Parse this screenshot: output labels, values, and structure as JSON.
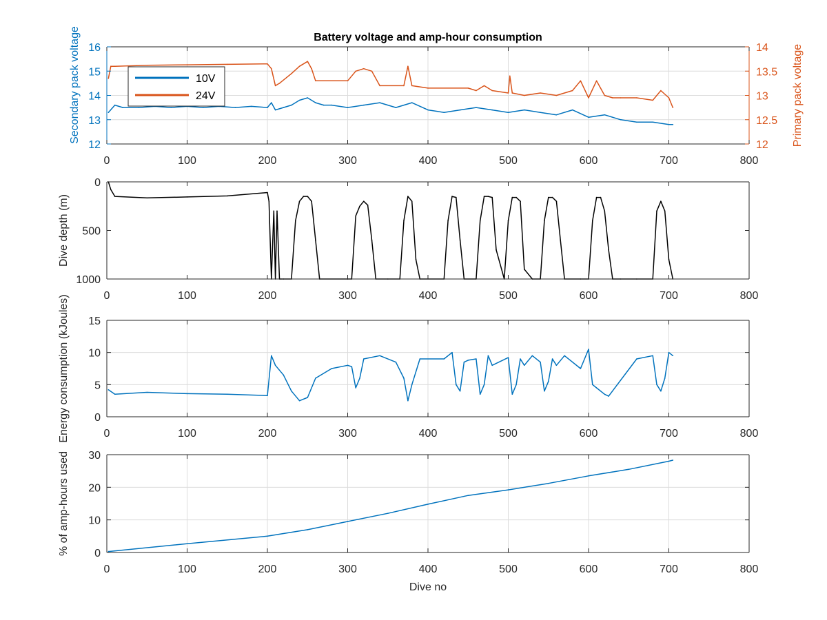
{
  "chart_data": [
    {
      "type": "line",
      "title": "Battery voltage and amp-hour consumption",
      "xlabel": "",
      "xlim": [
        0,
        800
      ],
      "xticks": [
        "0",
        "100",
        "200",
        "300",
        "400",
        "500",
        "600",
        "700",
        "800"
      ],
      "y_left": {
        "label": "Secondary pack voltage",
        "lim": [
          12,
          16
        ],
        "ticks": [
          "12",
          "13",
          "14",
          "15",
          "16"
        ],
        "color": "#0072BD"
      },
      "y_right": {
        "label": "Primary pack voltage",
        "lim": [
          12,
          14
        ],
        "ticks": [
          "12",
          "12.5",
          "13",
          "13.5",
          "14"
        ],
        "color": "#D95319"
      },
      "grid": true,
      "legend": {
        "placement": "top-left",
        "entries": [
          "10V",
          "24V"
        ]
      },
      "series": [
        {
          "name": "10V",
          "axis": "left",
          "color": "#0072BD",
          "x": [
            2,
            10,
            20,
            40,
            60,
            80,
            100,
            120,
            140,
            160,
            180,
            200,
            205,
            210,
            220,
            230,
            240,
            250,
            260,
            270,
            280,
            300,
            320,
            340,
            360,
            380,
            400,
            420,
            440,
            460,
            480,
            500,
            520,
            540,
            560,
            580,
            600,
            620,
            640,
            660,
            680,
            700,
            705
          ],
          "y": [
            13.3,
            13.6,
            13.5,
            13.5,
            13.55,
            13.5,
            13.55,
            13.5,
            13.55,
            13.5,
            13.55,
            13.5,
            13.7,
            13.4,
            13.5,
            13.6,
            13.8,
            13.9,
            13.7,
            13.6,
            13.6,
            13.5,
            13.6,
            13.7,
            13.5,
            13.7,
            13.4,
            13.3,
            13.4,
            13.5,
            13.4,
            13.3,
            13.4,
            13.3,
            13.2,
            13.4,
            13.1,
            13.2,
            13.0,
            12.9,
            12.9,
            12.8,
            12.8
          ]
        },
        {
          "name": "24V",
          "axis": "right",
          "color": "#D95319",
          "x": [
            2,
            5,
            10,
            50,
            100,
            150,
            200,
            205,
            210,
            215,
            230,
            240,
            250,
            255,
            260,
            300,
            310,
            320,
            330,
            340,
            370,
            375,
            380,
            400,
            450,
            460,
            470,
            480,
            500,
            502,
            505,
            520,
            540,
            560,
            580,
            590,
            600,
            610,
            620,
            630,
            640,
            660,
            680,
            690,
            700,
            705
          ],
          "y": [
            13.35,
            13.6,
            13.6,
            13.62,
            13.63,
            13.64,
            13.65,
            13.55,
            13.2,
            13.25,
            13.45,
            13.6,
            13.7,
            13.55,
            13.3,
            13.3,
            13.5,
            13.55,
            13.5,
            13.2,
            13.2,
            13.6,
            13.2,
            13.15,
            13.15,
            13.1,
            13.2,
            13.1,
            13.05,
            13.4,
            13.05,
            13.0,
            13.05,
            13.0,
            13.1,
            13.3,
            12.95,
            13.3,
            13.0,
            12.95,
            12.95,
            12.95,
            12.9,
            13.1,
            12.95,
            12.75
          ]
        }
      ]
    },
    {
      "type": "line",
      "title": "",
      "xlabel": "",
      "ylabel": "Dive depth (m)",
      "xlim": [
        0,
        800
      ],
      "ylim": [
        0,
        1000
      ],
      "y_reversed": true,
      "xticks": [
        "0",
        "100",
        "200",
        "300",
        "400",
        "500",
        "600",
        "700",
        "800"
      ],
      "yticks": [
        "0",
        "500",
        "1000"
      ],
      "grid": false,
      "series": [
        {
          "color": "#000000",
          "x": [
            2,
            5,
            10,
            50,
            100,
            150,
            200,
            202,
            205,
            208,
            210,
            212,
            215,
            217,
            220,
            230,
            235,
            240,
            245,
            250,
            255,
            260,
            265,
            300,
            305,
            310,
            315,
            320,
            325,
            330,
            335,
            350,
            365,
            370,
            375,
            380,
            385,
            390,
            420,
            425,
            430,
            435,
            440,
            445,
            460,
            465,
            470,
            475,
            480,
            485,
            495,
            500,
            505,
            510,
            515,
            520,
            530,
            540,
            545,
            550,
            555,
            560,
            565,
            570,
            590,
            600,
            605,
            610,
            615,
            620,
            625,
            630,
            640,
            660,
            680,
            685,
            690,
            695,
            700,
            705
          ],
          "y": [
            0,
            80,
            150,
            165,
            155,
            145,
            110,
            200,
            1000,
            300,
            1000,
            300,
            1000,
            1000,
            1000,
            1000,
            400,
            200,
            150,
            150,
            200,
            600,
            1000,
            1000,
            1000,
            350,
            250,
            200,
            240,
            600,
            1000,
            1000,
            1000,
            400,
            150,
            200,
            800,
            1000,
            1000,
            400,
            150,
            160,
            600,
            1000,
            1000,
            400,
            150,
            150,
            160,
            700,
            1000,
            400,
            160,
            160,
            200,
            900,
            1000,
            1000,
            400,
            160,
            160,
            200,
            600,
            1000,
            1000,
            1000,
            400,
            160,
            160,
            300,
            700,
            1000,
            1000,
            1000,
            1000,
            300,
            200,
            300,
            800,
            1000
          ]
        }
      ]
    },
    {
      "type": "line",
      "title": "",
      "xlabel": "",
      "ylabel": "Energy consumption (kJoules)",
      "xlim": [
        0,
        800
      ],
      "ylim": [
        0,
        15
      ],
      "xticks": [
        "0",
        "100",
        "200",
        "300",
        "400",
        "500",
        "600",
        "700",
        "800"
      ],
      "yticks": [
        "0",
        "5",
        "10",
        "15"
      ],
      "grid": true,
      "series": [
        {
          "color": "#0072BD",
          "x": [
            2,
            10,
            50,
            100,
            150,
            200,
            205,
            210,
            220,
            230,
            240,
            250,
            260,
            280,
            300,
            305,
            310,
            315,
            320,
            340,
            360,
            370,
            375,
            380,
            390,
            420,
            430,
            435,
            440,
            445,
            450,
            460,
            465,
            470,
            475,
            480,
            500,
            505,
            510,
            515,
            520,
            530,
            540,
            545,
            550,
            555,
            560,
            570,
            590,
            600,
            605,
            610,
            620,
            625,
            660,
            680,
            685,
            690,
            695,
            700,
            705
          ],
          "y": [
            4.2,
            3.5,
            3.8,
            3.6,
            3.5,
            3.3,
            9.5,
            8.0,
            6.5,
            4.0,
            2.5,
            3.0,
            6.0,
            7.5,
            8.0,
            7.8,
            4.5,
            6.0,
            9.0,
            9.5,
            8.5,
            6.0,
            2.5,
            5.0,
            9.0,
            9.0,
            10.0,
            5.0,
            4.0,
            8.5,
            8.8,
            9.0,
            3.5,
            5.0,
            9.5,
            8.0,
            9.2,
            3.5,
            5.0,
            9.0,
            8.0,
            9.5,
            8.5,
            4.0,
            5.5,
            9.0,
            8.0,
            9.5,
            7.5,
            10.5,
            5.0,
            4.5,
            3.5,
            3.2,
            9.0,
            9.5,
            5.0,
            4.0,
            6.0,
            10.0,
            9.5
          ]
        }
      ]
    },
    {
      "type": "line",
      "title": "",
      "xlabel": "Dive no",
      "ylabel": "% of amp-hours used",
      "xlim": [
        0,
        800
      ],
      "ylim": [
        0,
        30
      ],
      "xticks": [
        "0",
        "100",
        "200",
        "300",
        "400",
        "500",
        "600",
        "700",
        "800"
      ],
      "yticks": [
        "0",
        "10",
        "20",
        "30"
      ],
      "grid": true,
      "series": [
        {
          "color": "#0072BD",
          "x": [
            2,
            100,
            200,
            250,
            300,
            350,
            400,
            450,
            500,
            550,
            600,
            650,
            700,
            705
          ],
          "y": [
            0.3,
            2.7,
            5.0,
            7.0,
            9.5,
            12.0,
            14.8,
            17.5,
            19.2,
            21.2,
            23.5,
            25.5,
            28.0,
            28.3
          ]
        }
      ]
    }
  ]
}
